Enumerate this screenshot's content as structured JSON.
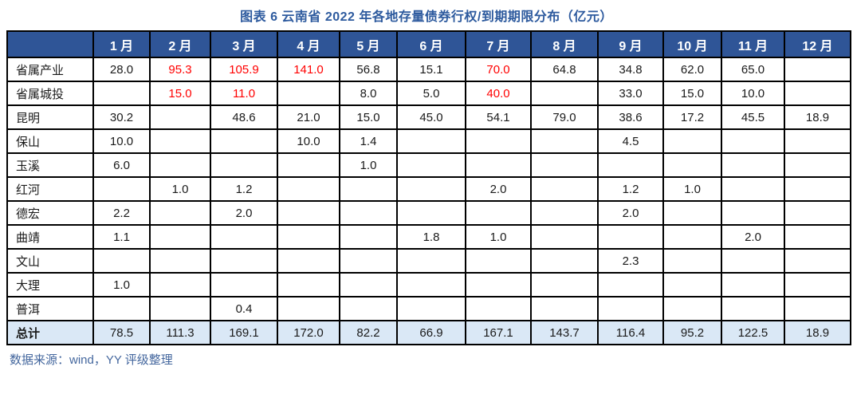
{
  "title": "图表 6  云南省 2022 年各地存量债券行权/到期期限分布（亿元）",
  "source_note": "数据来源：wind，YY 评级整理",
  "colors": {
    "title_text": "#2D5A9E",
    "header_bg": "#2F5597",
    "header_text": "#FFFFFF",
    "grid_border": "#000000",
    "total_row_bg": "#DAE8F6",
    "highlight_value": "#FF0000",
    "source_text": "#44679E"
  },
  "chart_data": {
    "type": "table",
    "title": "图表 6  云南省 2022 年各地存量债券行权/到期期限分布（亿元）",
    "unit": "亿元",
    "columns": [
      "",
      "1 月",
      "2 月",
      "3 月",
      "4 月",
      "5 月",
      "6 月",
      "7 月",
      "8 月",
      "9 月",
      "10 月",
      "11 月",
      "12 月"
    ],
    "rows": [
      {
        "label": "省属产业",
        "values": [
          "28.0",
          "95.3",
          "105.9",
          "141.0",
          "56.8",
          "15.1",
          "70.0",
          "64.8",
          "34.8",
          "62.0",
          "65.0",
          ""
        ],
        "red_indices": [
          1,
          2,
          3,
          6
        ],
        "is_total": false
      },
      {
        "label": "省属城投",
        "values": [
          "",
          "15.0",
          "11.0",
          "",
          "8.0",
          "5.0",
          "40.0",
          "",
          "33.0",
          "15.0",
          "10.0",
          ""
        ],
        "red_indices": [
          1,
          2,
          6
        ],
        "is_total": false
      },
      {
        "label": "昆明",
        "values": [
          "30.2",
          "",
          "48.6",
          "21.0",
          "15.0",
          "45.0",
          "54.1",
          "79.0",
          "38.6",
          "17.2",
          "45.5",
          "18.9"
        ],
        "red_indices": [],
        "is_total": false
      },
      {
        "label": "保山",
        "values": [
          "10.0",
          "",
          "",
          "10.0",
          "1.4",
          "",
          "",
          "",
          "4.5",
          "",
          "",
          ""
        ],
        "red_indices": [],
        "is_total": false
      },
      {
        "label": "玉溪",
        "values": [
          "6.0",
          "",
          "",
          "",
          "1.0",
          "",
          "",
          "",
          "",
          "",
          "",
          ""
        ],
        "red_indices": [],
        "is_total": false
      },
      {
        "label": "红河",
        "values": [
          "",
          "1.0",
          "1.2",
          "",
          "",
          "",
          "2.0",
          "",
          "1.2",
          "1.0",
          "",
          ""
        ],
        "red_indices": [],
        "is_total": false
      },
      {
        "label": "德宏",
        "values": [
          "2.2",
          "",
          "2.0",
          "",
          "",
          "",
          "",
          "",
          "2.0",
          "",
          "",
          ""
        ],
        "red_indices": [],
        "is_total": false
      },
      {
        "label": "曲靖",
        "values": [
          "1.1",
          "",
          "",
          "",
          "",
          "1.8",
          "1.0",
          "",
          "",
          "",
          "2.0",
          ""
        ],
        "red_indices": [],
        "is_total": false
      },
      {
        "label": "文山",
        "values": [
          "",
          "",
          "",
          "",
          "",
          "",
          "",
          "",
          "2.3",
          "",
          "",
          ""
        ],
        "red_indices": [],
        "is_total": false
      },
      {
        "label": "大理",
        "values": [
          "1.0",
          "",
          "",
          "",
          "",
          "",
          "",
          "",
          "",
          "",
          "",
          ""
        ],
        "red_indices": [],
        "is_total": false
      },
      {
        "label": "普洱",
        "values": [
          "",
          "",
          "0.4",
          "",
          "",
          "",
          "",
          "",
          "",
          "",
          "",
          ""
        ],
        "red_indices": [],
        "is_total": false
      },
      {
        "label": "总计",
        "values": [
          "78.5",
          "111.3",
          "169.1",
          "172.0",
          "82.2",
          "66.9",
          "167.1",
          "143.7",
          "116.4",
          "95.2",
          "122.5",
          "18.9"
        ],
        "red_indices": [],
        "is_total": true
      }
    ]
  }
}
